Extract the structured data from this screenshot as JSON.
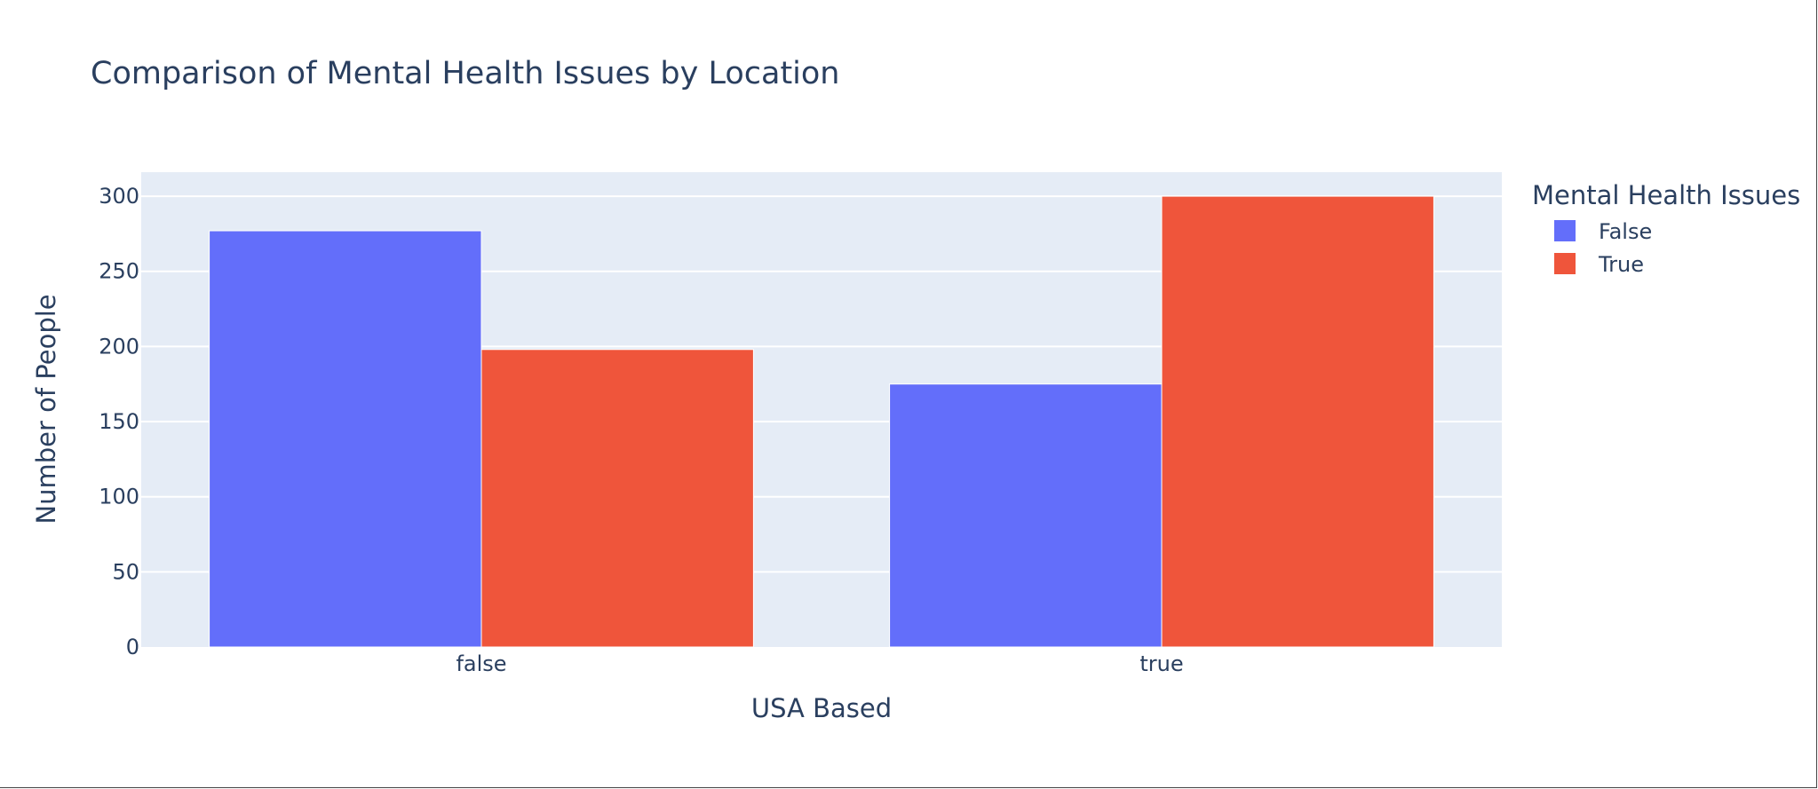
{
  "chart_data": {
    "type": "bar",
    "title": "Comparison of Mental Health Issues by Location",
    "xlabel": "USA Based",
    "ylabel": "Number of People",
    "categories": [
      "false",
      "true"
    ],
    "series": [
      {
        "name": "False",
        "values": [
          277,
          175
        ],
        "color": "#636efa"
      },
      {
        "name": "True",
        "values": [
          198,
          300
        ],
        "color": "#ef553b"
      }
    ],
    "ylim": [
      0,
      316
    ],
    "yticks": [
      0,
      50,
      100,
      150,
      200,
      250,
      300
    ],
    "legend": {
      "title": "Mental Health Issues",
      "position": "top-right"
    },
    "grid": true,
    "plot_background": "#e5ecf6"
  }
}
